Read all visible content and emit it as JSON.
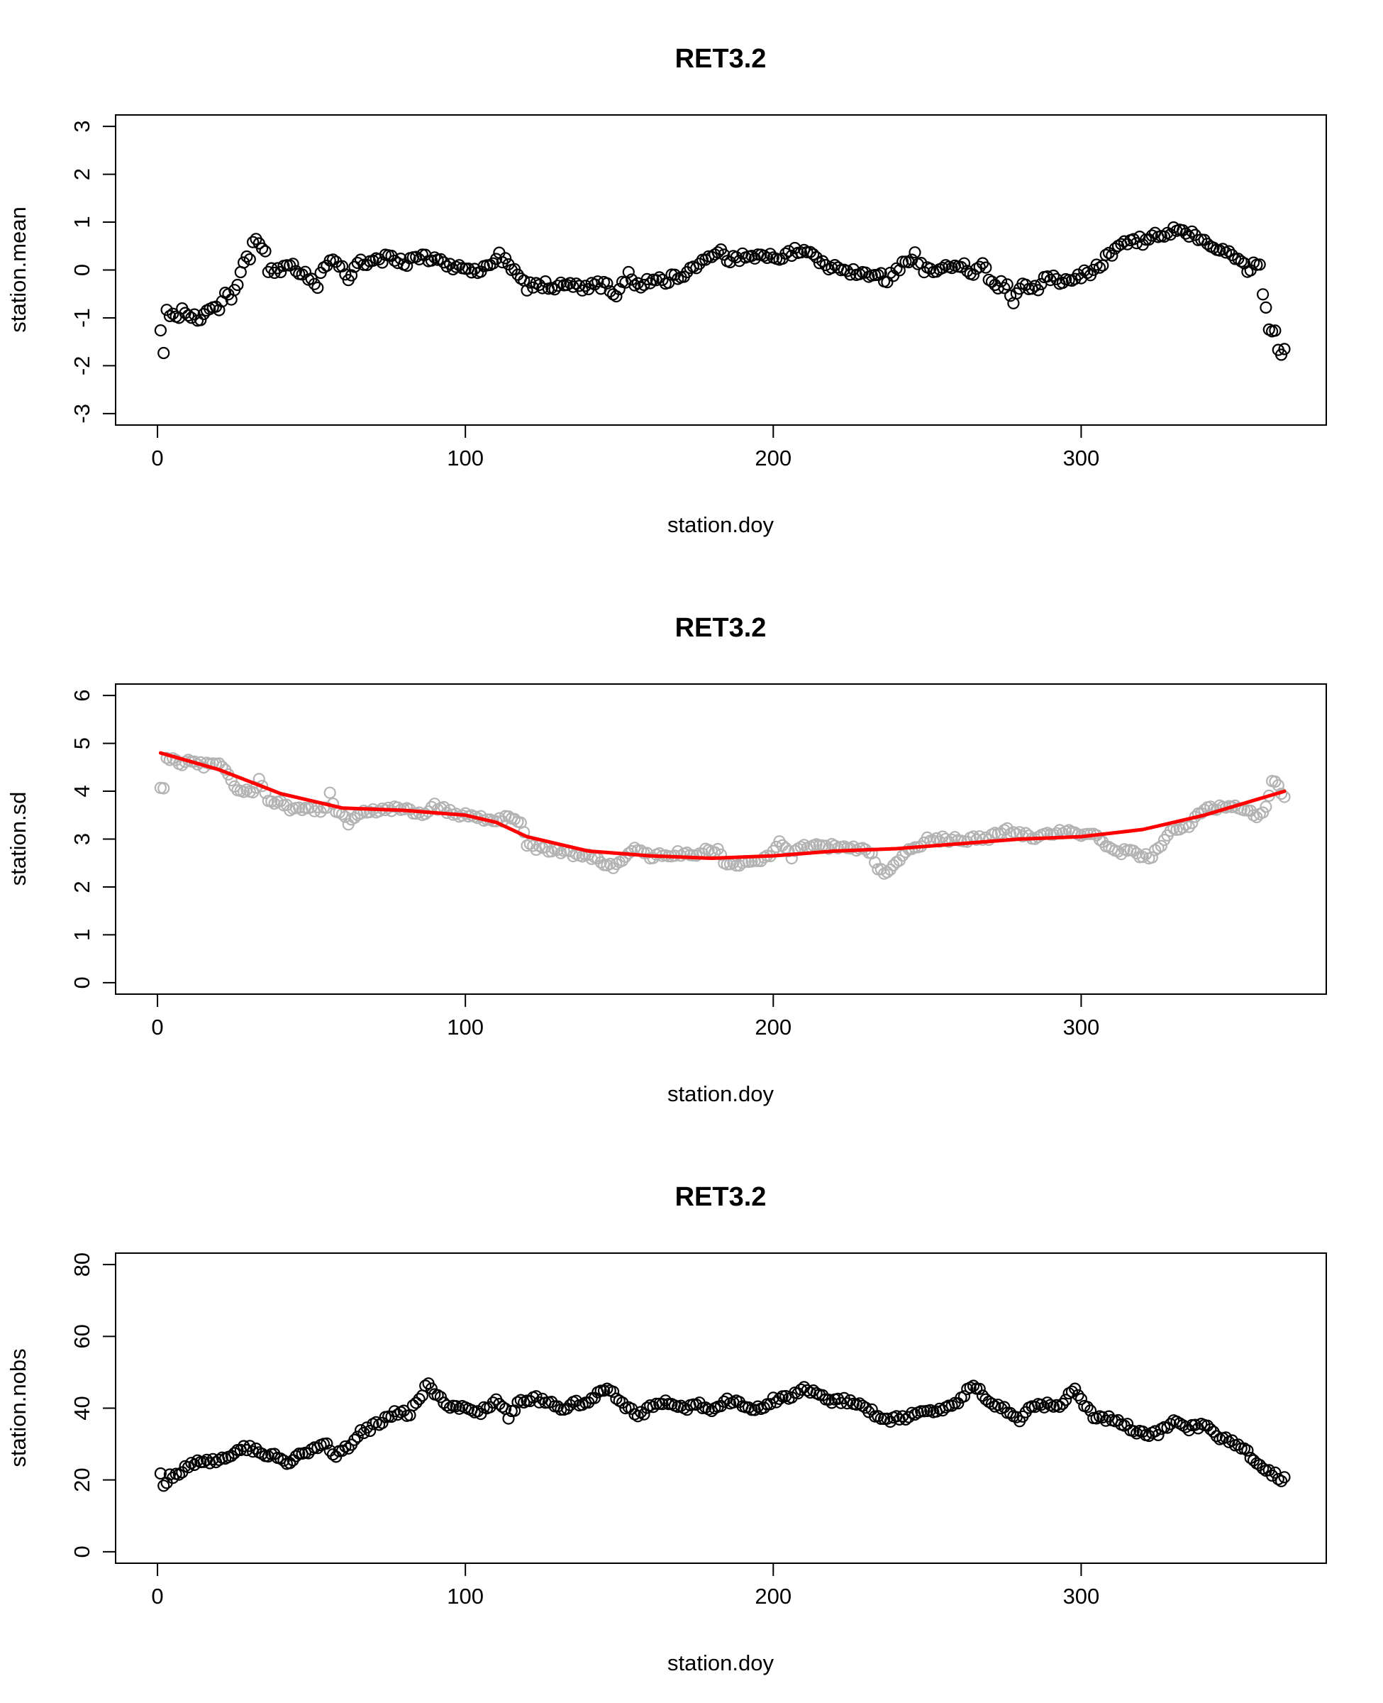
{
  "chart_data": [
    {
      "type": "scatter",
      "title": "RET3.2",
      "xlabel": "station.doy",
      "ylabel": "station.mean",
      "xlim": [
        -13.6,
        379.6
      ],
      "ylim": [
        -3.24,
        3.24
      ],
      "xticks": [
        0,
        100,
        200,
        300
      ],
      "yticks": [
        -3,
        -2,
        -1,
        0,
        1,
        2,
        3
      ],
      "point_color": "#000000",
      "x_start": 1,
      "anchors": [
        [
          1,
          -1.35
        ],
        [
          2,
          -1.65
        ],
        [
          3,
          -0.9
        ],
        [
          4,
          -1.0
        ],
        [
          6,
          -1.0
        ],
        [
          8,
          -0.85
        ],
        [
          10,
          -0.9
        ],
        [
          12,
          -1.0
        ],
        [
          14,
          -1.0
        ],
        [
          17,
          -0.9
        ],
        [
          20,
          -0.75
        ],
        [
          22,
          -0.5
        ],
        [
          24,
          -0.55
        ],
        [
          26,
          -0.3
        ],
        [
          28,
          0.1
        ],
        [
          30,
          0.3
        ],
        [
          31,
          0.65
        ],
        [
          33,
          0.55
        ],
        [
          35,
          0.45
        ],
        [
          36,
          0.0
        ],
        [
          40,
          -0.05
        ],
        [
          42,
          0.1
        ],
        [
          46,
          0.0
        ],
        [
          50,
          -0.2
        ],
        [
          52,
          -0.3
        ],
        [
          54,
          0.05
        ],
        [
          56,
          0.2
        ],
        [
          60,
          0.05
        ],
        [
          62,
          -0.2
        ],
        [
          64,
          0.1
        ],
        [
          66,
          0.2
        ],
        [
          70,
          0.15
        ],
        [
          74,
          0.25
        ],
        [
          80,
          0.15
        ],
        [
          86,
          0.25
        ],
        [
          90,
          0.25
        ],
        [
          95,
          0.1
        ],
        [
          100,
          0.0
        ],
        [
          104,
          -0.05
        ],
        [
          108,
          0.1
        ],
        [
          111,
          0.3
        ],
        [
          114,
          0.15
        ],
        [
          117,
          -0.15
        ],
        [
          120,
          -0.35
        ],
        [
          124,
          -0.3
        ],
        [
          130,
          -0.35
        ],
        [
          140,
          -0.35
        ],
        [
          145,
          -0.3
        ],
        [
          149,
          -0.5
        ],
        [
          152,
          -0.2
        ],
        [
          153,
          0.0
        ],
        [
          156,
          -0.35
        ],
        [
          160,
          -0.2
        ],
        [
          165,
          -0.2
        ],
        [
          170,
          -0.1
        ],
        [
          173,
          0.0
        ],
        [
          176,
          0.1
        ],
        [
          180,
          0.35
        ],
        [
          182,
          0.45
        ],
        [
          186,
          0.2
        ],
        [
          190,
          0.3
        ],
        [
          195,
          0.3
        ],
        [
          200,
          0.25
        ],
        [
          204,
          0.35
        ],
        [
          208,
          0.4
        ],
        [
          212,
          0.3
        ],
        [
          216,
          0.15
        ],
        [
          220,
          0.05
        ],
        [
          224,
          0.0
        ],
        [
          230,
          -0.05
        ],
        [
          234,
          -0.1
        ],
        [
          237,
          -0.2
        ],
        [
          240,
          0.05
        ],
        [
          243,
          0.15
        ],
        [
          246,
          0.3
        ],
        [
          249,
          0.0
        ],
        [
          252,
          0.0
        ],
        [
          256,
          0.05
        ],
        [
          262,
          0.05
        ],
        [
          265,
          -0.1
        ],
        [
          268,
          0.1
        ],
        [
          272,
          -0.35
        ],
        [
          276,
          -0.3
        ],
        [
          278,
          -0.65
        ],
        [
          281,
          -0.35
        ],
        [
          285,
          -0.4
        ],
        [
          288,
          -0.2
        ],
        [
          292,
          -0.2
        ],
        [
          296,
          -0.2
        ],
        [
          300,
          -0.1
        ],
        [
          304,
          -0.05
        ],
        [
          308,
          0.25
        ],
        [
          312,
          0.45
        ],
        [
          316,
          0.65
        ],
        [
          320,
          0.6
        ],
        [
          324,
          0.75
        ],
        [
          328,
          0.7
        ],
        [
          331,
          0.9
        ],
        [
          334,
          0.8
        ],
        [
          337,
          0.7
        ],
        [
          340,
          0.6
        ],
        [
          344,
          0.5
        ],
        [
          348,
          0.35
        ],
        [
          352,
          0.2
        ],
        [
          354,
          0.0
        ],
        [
          357,
          0.15
        ],
        [
          358,
          0.05
        ],
        [
          359,
          -0.55
        ],
        [
          360,
          -0.85
        ],
        [
          361,
          -1.2
        ],
        [
          362,
          -1.2
        ],
        [
          363,
          -1.35
        ],
        [
          364,
          -1.6
        ],
        [
          365,
          -1.8
        ],
        [
          366,
          -1.6
        ]
      ],
      "jitter": 0.09
    },
    {
      "type": "scatter",
      "title": "RET3.2",
      "xlabel": "station.doy",
      "ylabel": "station.sd",
      "xlim": [
        -13.6,
        379.6
      ],
      "ylim": [
        -0.24,
        6.24
      ],
      "xticks": [
        0,
        100,
        200,
        300
      ],
      "yticks": [
        0,
        1,
        2,
        3,
        4,
        5,
        6
      ],
      "point_color": "#b3b3b3",
      "x_start": 1,
      "anchors": [
        [
          1,
          4.05
        ],
        [
          2,
          4.1
        ],
        [
          3,
          4.7
        ],
        [
          6,
          4.6
        ],
        [
          10,
          4.6
        ],
        [
          15,
          4.55
        ],
        [
          20,
          4.55
        ],
        [
          22,
          4.45
        ],
        [
          25,
          4.1
        ],
        [
          28,
          4.0
        ],
        [
          30,
          3.95
        ],
        [
          33,
          4.2
        ],
        [
          36,
          3.85
        ],
        [
          40,
          3.75
        ],
        [
          45,
          3.6
        ],
        [
          50,
          3.65
        ],
        [
          55,
          3.6
        ],
        [
          56,
          3.95
        ],
        [
          58,
          3.6
        ],
        [
          62,
          3.35
        ],
        [
          65,
          3.55
        ],
        [
          70,
          3.6
        ],
        [
          75,
          3.6
        ],
        [
          80,
          3.65
        ],
        [
          85,
          3.5
        ],
        [
          90,
          3.7
        ],
        [
          95,
          3.55
        ],
        [
          100,
          3.5
        ],
        [
          105,
          3.45
        ],
        [
          110,
          3.4
        ],
        [
          115,
          3.45
        ],
        [
          118,
          3.4
        ],
        [
          120,
          2.85
        ],
        [
          125,
          2.8
        ],
        [
          130,
          2.75
        ],
        [
          140,
          2.65
        ],
        [
          145,
          2.5
        ],
        [
          148,
          2.45
        ],
        [
          152,
          2.65
        ],
        [
          155,
          2.85
        ],
        [
          160,
          2.65
        ],
        [
          170,
          2.7
        ],
        [
          175,
          2.6
        ],
        [
          178,
          2.8
        ],
        [
          182,
          2.75
        ],
        [
          184,
          2.5
        ],
        [
          190,
          2.5
        ],
        [
          196,
          2.55
        ],
        [
          200,
          2.75
        ],
        [
          202,
          2.95
        ],
        [
          206,
          2.65
        ],
        [
          210,
          2.85
        ],
        [
          220,
          2.85
        ],
        [
          230,
          2.8
        ],
        [
          232,
          2.7
        ],
        [
          234,
          2.4
        ],
        [
          236,
          2.3
        ],
        [
          238,
          2.4
        ],
        [
          240,
          2.5
        ],
        [
          242,
          2.7
        ],
        [
          245,
          2.75
        ],
        [
          250,
          3.0
        ],
        [
          260,
          3.0
        ],
        [
          270,
          3.0
        ],
        [
          275,
          3.2
        ],
        [
          280,
          3.1
        ],
        [
          285,
          3.05
        ],
        [
          290,
          3.1
        ],
        [
          295,
          3.15
        ],
        [
          300,
          3.1
        ],
        [
          305,
          3.1
        ],
        [
          308,
          2.8
        ],
        [
          312,
          2.75
        ],
        [
          318,
          2.7
        ],
        [
          322,
          2.6
        ],
        [
          326,
          2.9
        ],
        [
          330,
          3.2
        ],
        [
          335,
          3.3
        ],
        [
          340,
          3.6
        ],
        [
          345,
          3.65
        ],
        [
          350,
          3.65
        ],
        [
          355,
          3.55
        ],
        [
          358,
          3.5
        ],
        [
          360,
          3.7
        ],
        [
          362,
          4.2
        ],
        [
          364,
          4.1
        ],
        [
          366,
          3.9
        ]
      ],
      "jitter": 0.06,
      "series": [
        {
          "type": "line",
          "color": "#ff0000",
          "x": [
            1,
            20,
            40,
            60,
            80,
            100,
            110,
            120,
            140,
            160,
            180,
            200,
            220,
            240,
            260,
            280,
            300,
            320,
            340,
            366
          ],
          "y": [
            4.8,
            4.45,
            3.95,
            3.65,
            3.6,
            3.5,
            3.35,
            3.05,
            2.75,
            2.65,
            2.6,
            2.65,
            2.75,
            2.8,
            2.9,
            3.0,
            3.05,
            3.2,
            3.5,
            4.0
          ]
        }
      ]
    },
    {
      "type": "scatter",
      "title": "RET3.2",
      "xlabel": "station.doy",
      "ylabel": "station.nobs",
      "xlim": [
        -13.6,
        379.6
      ],
      "ylim": [
        -3.2,
        83.2
      ],
      "xticks": [
        0,
        100,
        200,
        300
      ],
      "yticks": [
        0,
        20,
        40,
        60,
        80
      ],
      "point_color": "#000000",
      "x_start": 1,
      "anchors": [
        [
          1,
          21
        ],
        [
          2,
          19
        ],
        [
          4,
          21
        ],
        [
          8,
          22
        ],
        [
          10,
          24
        ],
        [
          15,
          25
        ],
        [
          20,
          25
        ],
        [
          25,
          28
        ],
        [
          30,
          29
        ],
        [
          34,
          27
        ],
        [
          38,
          27
        ],
        [
          42,
          25
        ],
        [
          46,
          27
        ],
        [
          50,
          28
        ],
        [
          55,
          30
        ],
        [
          58,
          27
        ],
        [
          62,
          29
        ],
        [
          66,
          33
        ],
        [
          70,
          35
        ],
        [
          74,
          37
        ],
        [
          78,
          39
        ],
        [
          82,
          38
        ],
        [
          84,
          42
        ],
        [
          86,
          44
        ],
        [
          88,
          47
        ],
        [
          90,
          44
        ],
        [
          95,
          40
        ],
        [
          100,
          40
        ],
        [
          104,
          39
        ],
        [
          108,
          40
        ],
        [
          110,
          43
        ],
        [
          114,
          38
        ],
        [
          118,
          42
        ],
        [
          122,
          43
        ],
        [
          126,
          42
        ],
        [
          130,
          40
        ],
        [
          135,
          41
        ],
        [
          140,
          42
        ],
        [
          145,
          45
        ],
        [
          148,
          44
        ],
        [
          152,
          40
        ],
        [
          156,
          38
        ],
        [
          160,
          40
        ],
        [
          165,
          42
        ],
        [
          170,
          40
        ],
        [
          175,
          41
        ],
        [
          180,
          40
        ],
        [
          185,
          42
        ],
        [
          190,
          41
        ],
        [
          195,
          40
        ],
        [
          200,
          42
        ],
        [
          205,
          43
        ],
        [
          210,
          45
        ],
        [
          215,
          44
        ],
        [
          220,
          42
        ],
        [
          225,
          42
        ],
        [
          230,
          40
        ],
        [
          235,
          37
        ],
        [
          240,
          37
        ],
        [
          245,
          38
        ],
        [
          250,
          39
        ],
        [
          255,
          39
        ],
        [
          260,
          42
        ],
        [
          264,
          46
        ],
        [
          268,
          44
        ],
        [
          272,
          41
        ],
        [
          276,
          39
        ],
        [
          280,
          37
        ],
        [
          284,
          40
        ],
        [
          288,
          41
        ],
        [
          292,
          40
        ],
        [
          296,
          44
        ],
        [
          298,
          45
        ],
        [
          300,
          42
        ],
        [
          305,
          37
        ],
        [
          310,
          37
        ],
        [
          315,
          35
        ],
        [
          320,
          33
        ],
        [
          325,
          33
        ],
        [
          330,
          36
        ],
        [
          334,
          34
        ],
        [
          338,
          35
        ],
        [
          340,
          36
        ],
        [
          345,
          32
        ],
        [
          350,
          30
        ],
        [
          355,
          27
        ],
        [
          358,
          24
        ],
        [
          362,
          22
        ],
        [
          366,
          20
        ]
      ],
      "jitter": 0.9
    }
  ]
}
